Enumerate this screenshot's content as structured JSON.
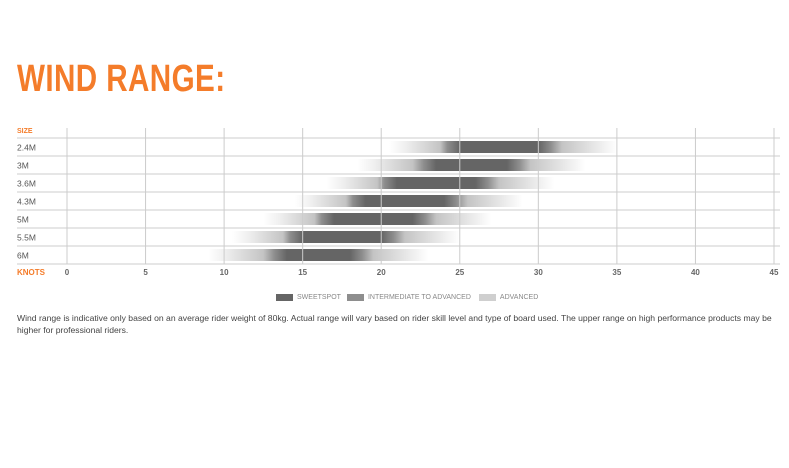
{
  "title": "WIND RANGE:",
  "chart_data": {
    "type": "bar",
    "orientation": "horizontal-range",
    "y_header": "SIZE",
    "x_header": "KNOTS",
    "xlim": [
      0,
      45
    ],
    "x_ticks": [
      0,
      5,
      10,
      15,
      20,
      25,
      30,
      35,
      40,
      45
    ],
    "grid": true,
    "categories": [
      "2.4M",
      "3M",
      "3.6M",
      "4.3M",
      "5M",
      "5.5M",
      "6M"
    ],
    "ranges": [
      {
        "size": "2.4M",
        "min": 20.5,
        "sweet_min": 25,
        "sweet_max": 30,
        "max": 35
      },
      {
        "size": "3M",
        "min": 18.5,
        "sweet_min": 23.5,
        "sweet_max": 28,
        "max": 33
      },
      {
        "size": "3.6M",
        "min": 16.5,
        "sweet_min": 21,
        "sweet_max": 26,
        "max": 31
      },
      {
        "size": "4.3M",
        "min": 14.5,
        "sweet_min": 19,
        "sweet_max": 24,
        "max": 29
      },
      {
        "size": "5M",
        "min": 12.5,
        "sweet_min": 17,
        "sweet_max": 22,
        "max": 27
      },
      {
        "size": "5.5M",
        "min": 10.5,
        "sweet_min": 15,
        "sweet_max": 20,
        "max": 25
      },
      {
        "size": "6M",
        "min": 9,
        "sweet_min": 14,
        "sweet_max": 18,
        "max": 23
      }
    ],
    "legend": [
      {
        "label": "SWEETSPOT",
        "color": "#656565"
      },
      {
        "label": "INTERMEDIATE TO ADVANCED",
        "color": "#8e8e8e"
      },
      {
        "label": "ADVANCED",
        "color": "#cfcfcf"
      }
    ],
    "legend_placement": "bottom"
  },
  "colors": {
    "accent": "#f47c2a",
    "grid": "#cccccc"
  },
  "note": "Wind range is indicative only based on an average rider weight of 80kg. Actual range will vary based on rider skill level and type of board used. The upper range on high performance products may be higher for professional riders."
}
